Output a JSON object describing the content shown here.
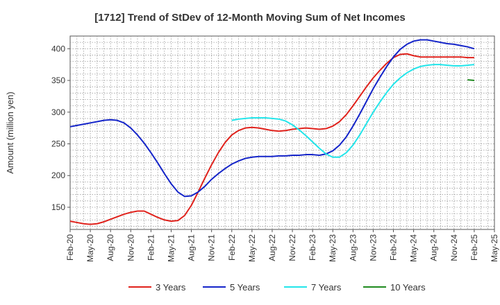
{
  "chart_data": {
    "type": "line",
    "title": "[1712]  Trend of StDev of 12-Month Moving Sum of Net Incomes",
    "ylabel": "Amount (million yen)",
    "xlabel": "",
    "ylim": [
      115,
      420
    ],
    "yticks": [
      150,
      200,
      250,
      300,
      350,
      400
    ],
    "xlim": [
      "Feb-20",
      "May-25"
    ],
    "xticks": [
      "Feb-20",
      "May-20",
      "Aug-20",
      "Nov-20",
      "Feb-21",
      "May-21",
      "Aug-21",
      "Nov-21",
      "Feb-22",
      "May-22",
      "Aug-22",
      "Nov-22",
      "Feb-23",
      "May-23",
      "Aug-23",
      "Nov-23",
      "Feb-24",
      "May-24",
      "Aug-24",
      "Nov-24",
      "Feb-25",
      "May-25"
    ],
    "grid": true,
    "legend_position": "bottom",
    "series": [
      {
        "name": "3 Years",
        "color": "#e0211b",
        "points": [
          [
            "Feb-20",
            128
          ],
          [
            "Mar-20",
            126
          ],
          [
            "Apr-20",
            124
          ],
          [
            "May-20",
            123
          ],
          [
            "Jun-20",
            124
          ],
          [
            "Jul-20",
            127
          ],
          [
            "Aug-20",
            131
          ],
          [
            "Sep-20",
            135
          ],
          [
            "Oct-20",
            139
          ],
          [
            "Nov-20",
            142
          ],
          [
            "Dec-20",
            144
          ],
          [
            "Jan-21",
            144
          ],
          [
            "Feb-21",
            139
          ],
          [
            "Mar-21",
            134
          ],
          [
            "Apr-21",
            130
          ],
          [
            "May-21",
            128
          ],
          [
            "Jun-21",
            129
          ],
          [
            "Jul-21",
            137
          ],
          [
            "Aug-21",
            153
          ],
          [
            "Sep-21",
            174
          ],
          [
            "Oct-21",
            196
          ],
          [
            "Nov-21",
            217
          ],
          [
            "Dec-21",
            236
          ],
          [
            "Jan-22",
            252
          ],
          [
            "Feb-22",
            264
          ],
          [
            "Mar-22",
            271
          ],
          [
            "Apr-22",
            275
          ],
          [
            "May-22",
            276
          ],
          [
            "Jun-22",
            275
          ],
          [
            "Jul-22",
            273
          ],
          [
            "Aug-22",
            271
          ],
          [
            "Sep-22",
            270
          ],
          [
            "Oct-22",
            271
          ],
          [
            "Nov-22",
            273
          ],
          [
            "Dec-22",
            274
          ],
          [
            "Jan-23",
            275
          ],
          [
            "Feb-23",
            274
          ],
          [
            "Mar-23",
            273
          ],
          [
            "Apr-23",
            274
          ],
          [
            "May-23",
            278
          ],
          [
            "Jun-23",
            285
          ],
          [
            "Jul-23",
            296
          ],
          [
            "Aug-23",
            310
          ],
          [
            "Sep-23",
            325
          ],
          [
            "Oct-23",
            340
          ],
          [
            "Nov-23",
            354
          ],
          [
            "Dec-23",
            366
          ],
          [
            "Jan-24",
            377
          ],
          [
            "Feb-24",
            386
          ],
          [
            "Mar-24",
            391
          ],
          [
            "Apr-24",
            392
          ],
          [
            "May-24",
            389
          ],
          [
            "Jun-24",
            387
          ],
          [
            "Jul-24",
            387
          ],
          [
            "Aug-24",
            387
          ],
          [
            "Sep-24",
            387
          ],
          [
            "Oct-24",
            387
          ],
          [
            "Nov-24",
            387
          ],
          [
            "Dec-24",
            387
          ],
          [
            "Jan-25",
            386
          ],
          [
            "Feb-25",
            386
          ]
        ]
      },
      {
        "name": "5 Years",
        "color": "#1424c9",
        "points": [
          [
            "Feb-20",
            277
          ],
          [
            "Mar-20",
            279
          ],
          [
            "Apr-20",
            281
          ],
          [
            "May-20",
            283
          ],
          [
            "Jun-20",
            285
          ],
          [
            "Jul-20",
            287
          ],
          [
            "Aug-20",
            288
          ],
          [
            "Sep-20",
            287
          ],
          [
            "Oct-20",
            283
          ],
          [
            "Nov-20",
            275
          ],
          [
            "Dec-20",
            264
          ],
          [
            "Jan-21",
            251
          ],
          [
            "Feb-21",
            236
          ],
          [
            "Mar-21",
            220
          ],
          [
            "Apr-21",
            203
          ],
          [
            "May-21",
            187
          ],
          [
            "Jun-21",
            174
          ],
          [
            "Jul-21",
            167
          ],
          [
            "Aug-21",
            168
          ],
          [
            "Sep-21",
            174
          ],
          [
            "Oct-21",
            183
          ],
          [
            "Nov-21",
            194
          ],
          [
            "Dec-21",
            203
          ],
          [
            "Jan-22",
            211
          ],
          [
            "Feb-22",
            218
          ],
          [
            "Mar-22",
            223
          ],
          [
            "Apr-22",
            227
          ],
          [
            "May-22",
            229
          ],
          [
            "Jun-22",
            230
          ],
          [
            "Jul-22",
            230
          ],
          [
            "Aug-22",
            230
          ],
          [
            "Sep-22",
            231
          ],
          [
            "Oct-22",
            231
          ],
          [
            "Nov-22",
            232
          ],
          [
            "Dec-22",
            232
          ],
          [
            "Jan-23",
            233
          ],
          [
            "Feb-23",
            233
          ],
          [
            "Mar-23",
            232
          ],
          [
            "Apr-23",
            234
          ],
          [
            "May-23",
            239
          ],
          [
            "Jun-23",
            248
          ],
          [
            "Jul-23",
            261
          ],
          [
            "Aug-23",
            278
          ],
          [
            "Sep-23",
            297
          ],
          [
            "Oct-23",
            317
          ],
          [
            "Nov-23",
            337
          ],
          [
            "Dec-23",
            355
          ],
          [
            "Jan-24",
            372
          ],
          [
            "Feb-24",
            387
          ],
          [
            "Mar-24",
            399
          ],
          [
            "Apr-24",
            407
          ],
          [
            "May-24",
            412
          ],
          [
            "Jun-24",
            414
          ],
          [
            "Jul-24",
            414
          ],
          [
            "Aug-24",
            412
          ],
          [
            "Sep-24",
            410
          ],
          [
            "Oct-24",
            408
          ],
          [
            "Nov-24",
            407
          ],
          [
            "Dec-24",
            405
          ],
          [
            "Jan-25",
            403
          ],
          [
            "Feb-25",
            400
          ]
        ]
      },
      {
        "name": "7 Years",
        "color": "#22e5ea",
        "points": [
          [
            "Feb-22",
            287
          ],
          [
            "Mar-22",
            289
          ],
          [
            "Apr-22",
            290
          ],
          [
            "May-22",
            291
          ],
          [
            "Jun-22",
            291
          ],
          [
            "Jul-22",
            291
          ],
          [
            "Aug-22",
            290
          ],
          [
            "Sep-22",
            289
          ],
          [
            "Oct-22",
            286
          ],
          [
            "Nov-22",
            280
          ],
          [
            "Dec-22",
            272
          ],
          [
            "Jan-23",
            263
          ],
          [
            "Feb-23",
            253
          ],
          [
            "Mar-23",
            243
          ],
          [
            "Apr-23",
            234
          ],
          [
            "May-23",
            229
          ],
          [
            "Jun-23",
            229
          ],
          [
            "Jul-23",
            236
          ],
          [
            "Aug-23",
            248
          ],
          [
            "Sep-23",
            264
          ],
          [
            "Oct-23",
            282
          ],
          [
            "Nov-23",
            300
          ],
          [
            "Dec-23",
            316
          ],
          [
            "Jan-24",
            331
          ],
          [
            "Feb-24",
            344
          ],
          [
            "Mar-24",
            354
          ],
          [
            "Apr-24",
            362
          ],
          [
            "May-24",
            368
          ],
          [
            "Jun-24",
            372
          ],
          [
            "Jul-24",
            374
          ],
          [
            "Aug-24",
            375
          ],
          [
            "Sep-24",
            375
          ],
          [
            "Oct-24",
            374
          ],
          [
            "Nov-24",
            373
          ],
          [
            "Dec-24",
            373
          ],
          [
            "Jan-25",
            374
          ],
          [
            "Feb-25",
            375
          ]
        ]
      },
      {
        "name": "10 Years",
        "color": "#1f8a1f",
        "points": [
          [
            "Jan-25",
            351
          ],
          [
            "Feb-25",
            350
          ]
        ]
      }
    ]
  }
}
